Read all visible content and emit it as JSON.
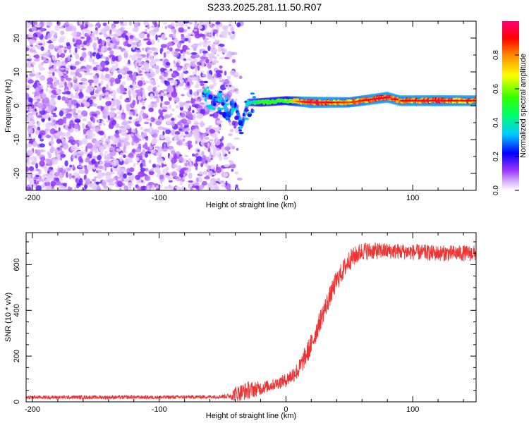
{
  "title": "S233.2025.281.11.50.R07",
  "chart_data": [
    {
      "type": "heatmap",
      "title": "S233.2025.281.11.50.R07",
      "xlabel": "Height of straight line (km)",
      "ylabel": "Frequency (Hz)",
      "xlim": [
        -205,
        150
      ],
      "ylim": [
        -25,
        25
      ],
      "xticks": [
        -200,
        -100,
        0,
        100
      ],
      "yticks": [
        -20,
        -10,
        0,
        10,
        20
      ],
      "colorbar": {
        "label": "Normalized spectral amplitude",
        "range": [
          0,
          1
        ],
        "ticks": [
          0.0,
          0.2,
          0.4,
          0.6,
          0.8
        ],
        "tick_labels": [
          "0.0",
          "0.2",
          "0.4",
          "0.6",
          "0.8"
        ]
      },
      "features": {
        "noise_region_x": [
          -205,
          -35
        ],
        "signal_start_x": -65,
        "signal_frequency_hz": 1,
        "signal_track": [
          {
            "x": -65,
            "f": 3.5,
            "a": 0.25
          },
          {
            "x": -58,
            "f": 2.5,
            "a": 0.3
          },
          {
            "x": -50,
            "f": 1.5,
            "a": 0.35
          },
          {
            "x": -45,
            "f": -3,
            "a": 0.3
          },
          {
            "x": -40,
            "f": 0.5,
            "a": 0.35
          },
          {
            "x": -35,
            "f": -6,
            "a": 0.3
          },
          {
            "x": -30,
            "f": 1,
            "a": 0.4
          },
          {
            "x": -20,
            "f": 1,
            "a": 0.55
          },
          {
            "x": 0,
            "f": 1.5,
            "a": 0.6
          },
          {
            "x": 20,
            "f": 1,
            "a": 0.95
          },
          {
            "x": 50,
            "f": 1,
            "a": 0.8
          },
          {
            "x": 80,
            "f": 2.5,
            "a": 0.9
          },
          {
            "x": 90,
            "f": 1.5,
            "a": 0.85
          },
          {
            "x": 120,
            "f": 1.5,
            "a": 0.9
          },
          {
            "x": 150,
            "f": 1.5,
            "a": 0.85
          }
        ]
      }
    },
    {
      "type": "line",
      "xlabel": "Height of straight line (km)",
      "ylabel": "SNR (10 * v/v)",
      "xlim": [
        -205,
        150
      ],
      "ylim": [
        0,
        740
      ],
      "xticks": [
        -200,
        -100,
        0,
        100
      ],
      "yticks": [
        0,
        200,
        400,
        600
      ],
      "series": [
        {
          "name": "SNR",
          "color": "#ee3333",
          "x": [
            -205,
            -150,
            -100,
            -60,
            -45,
            -40,
            -30,
            -20,
            -10,
            0,
            10,
            20,
            30,
            40,
            50,
            60,
            80,
            100,
            120,
            150
          ],
          "values": [
            20,
            20,
            20,
            22,
            25,
            35,
            50,
            60,
            75,
            95,
            140,
            250,
            400,
            530,
            620,
            660,
            660,
            655,
            650,
            650
          ],
          "noise_amplitude": [
            8,
            8,
            8,
            8,
            10,
            35,
            40,
            30,
            25,
            30,
            40,
            50,
            45,
            45,
            45,
            40,
            35,
            35,
            35,
            35
          ]
        }
      ]
    }
  ]
}
